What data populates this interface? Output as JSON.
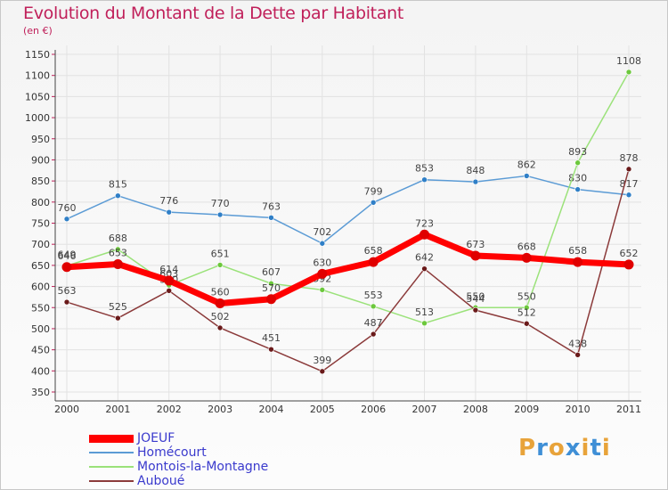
{
  "header": {
    "title": "Evolution du Montant de la Dette par Habitant",
    "subtitle": "(en €)"
  },
  "colors": {
    "title": "#c0205a",
    "legend_text": "#3a3acd",
    "grid": "#e2e2e2",
    "axis": "#444444"
  },
  "logo": {
    "letters": [
      "P",
      "r",
      "o",
      "x",
      "i",
      "t",
      "i"
    ],
    "colors": [
      "#e8a33a",
      "#3f8fd6",
      "#e8a33a",
      "#3f8fd6",
      "#e8a33a",
      "#3f8fd6",
      "#e8a33a"
    ]
  },
  "chart_data": {
    "type": "line",
    "title": "Evolution du Montant de la Dette par Habitant",
    "subtitle": "(en €)",
    "x": [
      "2000",
      "2001",
      "2002",
      "2003",
      "2004",
      "2005",
      "2006",
      "2007",
      "2008",
      "2009",
      "2010",
      "2011"
    ],
    "y_ticks": [
      350,
      400,
      450,
      500,
      550,
      600,
      650,
      700,
      750,
      800,
      850,
      900,
      950,
      1000,
      1050,
      1100,
      1150
    ],
    "ylim": [
      350,
      1150
    ],
    "grid": true,
    "legend_position": "bottom-left",
    "series": [
      {
        "name": "Homécourt",
        "color": "#5b9bd5",
        "point_color": "#2f7fc7",
        "emphasis": false,
        "values": [
          760,
          815,
          776,
          770,
          763,
          702,
          799,
          853,
          848,
          862,
          830,
          817
        ]
      },
      {
        "name": "Montois-la-Montagne",
        "color": "#9be27a",
        "point_color": "#6cc83c",
        "emphasis": false,
        "values": [
          649,
          688,
          603,
          651,
          607,
          592,
          553,
          513,
          550,
          550,
          893,
          1108
        ]
      },
      {
        "name": "Auboué",
        "color": "#8b3a3a",
        "point_color": "#6a1a1a",
        "emphasis": false,
        "values": [
          563,
          525,
          590,
          502,
          451,
          399,
          487,
          642,
          544,
          512,
          438,
          878
        ]
      },
      {
        "name": "JOEUF",
        "color": "#ff0000",
        "point_color": "#e00000",
        "emphasis": true,
        "values": [
          646,
          653,
          614,
          560,
          570,
          630,
          658,
          723,
          673,
          668,
          658,
          652
        ]
      }
    ],
    "legend_order": [
      "JOEUF",
      "Homécourt",
      "Montois-la-Montagne",
      "Auboué"
    ]
  }
}
